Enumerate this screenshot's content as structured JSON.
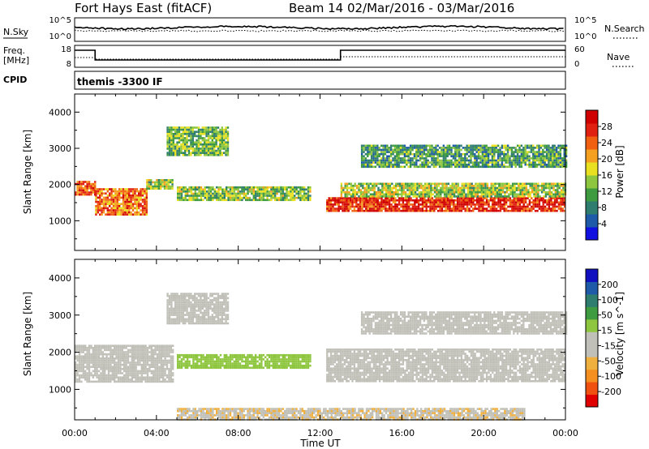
{
  "header": {
    "station": "Fort Hays East (fitACF)",
    "beam_dates": "Beam 14  02/Mar/2016 - 03/Mar/2016"
  },
  "noise_panel": {
    "left_label": "N.Sky",
    "left_ticks": [
      "10^5",
      "10^0"
    ],
    "right_label": "N.Search",
    "right_ticks": [
      "10^5",
      "10^0"
    ]
  },
  "freq_panel": {
    "left_label_1": "Freq.",
    "left_label_2": "[MHz]",
    "left_ticks": [
      "18",
      "8"
    ],
    "right_label": "Nave",
    "right_ticks": [
      "60",
      "0"
    ]
  },
  "cpid": {
    "label": "CPID",
    "value": "themis -3300 IF"
  },
  "x_axis": {
    "label": "Time UT",
    "ticks": [
      "00:00",
      "04:00",
      "08:00",
      "12:00",
      "16:00",
      "20:00",
      "00:00"
    ]
  },
  "chart_data": [
    {
      "type": "heatmap",
      "name": "power",
      "ylabel": "Slant Range [km]",
      "xlabel": "Time UT",
      "xlim_hours": [
        0,
        24
      ],
      "ylim": [
        180,
        4500
      ],
      "yticks": [
        1000,
        2000,
        3000,
        4000
      ],
      "colorbar": {
        "label": "Power [dB]",
        "ticks": [
          "28",
          "24",
          "20",
          "16",
          "12",
          "8",
          "4"
        ],
        "range": [
          0,
          30
        ],
        "colors": [
          "#1010e0",
          "#1e5aa8",
          "#2e7d6e",
          "#3f9b3f",
          "#8ec63f",
          "#e8e020",
          "#f5a020",
          "#f06010",
          "#e02010",
          "#d00000"
        ]
      },
      "regions": [
        {
          "t0": 0.0,
          "t1": 1.0,
          "r0": 1700,
          "r1": 2100,
          "level": 24
        },
        {
          "t0": 1.0,
          "t1": 3.5,
          "r0": 1200,
          "r1": 1900,
          "level": 22
        },
        {
          "t0": 3.5,
          "t1": 4.8,
          "r0": 1900,
          "r1": 2150,
          "level": 14
        },
        {
          "t0": 4.5,
          "t1": 7.5,
          "r0": 2800,
          "r1": 3600,
          "level": 12
        },
        {
          "t0": 5.0,
          "t1": 11.5,
          "r0": 1550,
          "r1": 1950,
          "level": 13
        },
        {
          "t0": 12.3,
          "t1": 24.0,
          "r0": 1250,
          "r1": 1650,
          "level": 26
        },
        {
          "t0": 13.0,
          "t1": 24.0,
          "r0": 1650,
          "r1": 2050,
          "level": 14
        },
        {
          "t0": 14.0,
          "t1": 24.0,
          "r0": 2500,
          "r1": 3100,
          "level": 10
        }
      ]
    },
    {
      "type": "heatmap",
      "name": "velocity",
      "ylabel": "Slant Range [km]",
      "xlabel": "Time UT",
      "xlim_hours": [
        0,
        24
      ],
      "ylim": [
        180,
        4500
      ],
      "yticks": [
        1000,
        2000,
        3000,
        4000
      ],
      "colorbar": {
        "label": "Velocity [m s^-1]",
        "ticks": [
          "200",
          "100",
          "50",
          "15",
          "-15",
          "-50",
          "-100",
          "-200"
        ],
        "range": [
          -250,
          250
        ],
        "colors": [
          "#e00000",
          "#f05010",
          "#f59020",
          "#f0b040",
          "#c0c0b8",
          "#c0c0b8",
          "#8ec63f",
          "#3f9b3f",
          "#2e7d6e",
          "#1e5aa8",
          "#1010c0"
        ]
      },
      "regions": [
        {
          "t0": 0.0,
          "t1": 4.8,
          "r0": 1200,
          "r1": 2200,
          "value": 0
        },
        {
          "t0": 4.5,
          "t1": 7.5,
          "r0": 2800,
          "r1": 3600,
          "value": -10
        },
        {
          "t0": 5.0,
          "t1": 11.5,
          "r0": 1600,
          "r1": 1950,
          "value": 45
        },
        {
          "t0": 12.3,
          "t1": 24.0,
          "r0": 1200,
          "r1": 2100,
          "value": 0
        },
        {
          "t0": 14.0,
          "t1": 24.0,
          "r0": 2500,
          "r1": 3100,
          "value": 0
        },
        {
          "t0": 5.0,
          "t1": 22.0,
          "r0": 180,
          "r1": 500,
          "value": -60
        }
      ]
    }
  ],
  "colors": {
    "frame": "#000000",
    "ground_scatter": "#c0c0b8"
  }
}
